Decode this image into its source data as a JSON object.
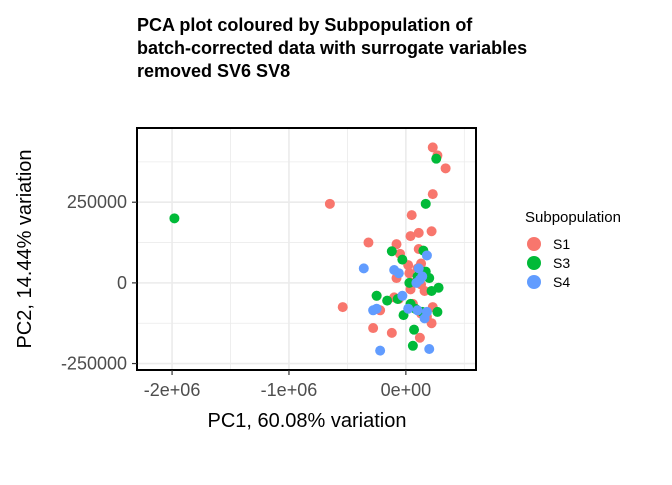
{
  "chart_data": {
    "type": "scatter",
    "title_lines": [
      "PCA plot coloured by Subpopulation of",
      "batch-corrected data with surrogate variables",
      "removed SV6 SV8"
    ],
    "xlabel": "PC1, 60.08% variation",
    "ylabel": "PC2, 14.44% variation",
    "xlim": [
      -2300000,
      600000
    ],
    "ylim": [
      -270000,
      480000
    ],
    "x_ticks": [
      {
        "value": -2000000,
        "label": "-2e+06"
      },
      {
        "value": -1000000,
        "label": "-1e+06"
      },
      {
        "value": 0,
        "label": "0e+00"
      }
    ],
    "y_ticks": [
      {
        "value": 250000,
        "label": "250000"
      },
      {
        "value": 0,
        "label": "0"
      },
      {
        "value": -250000,
        "label": "-250000"
      }
    ],
    "grid": true,
    "legend": {
      "title": "Subpopulation",
      "position": "right"
    },
    "series": [
      {
        "name": "S1",
        "color": "#F8766D",
        "points": [
          [
            230000,
            420000
          ],
          [
            270000,
            395000
          ],
          [
            340000,
            355000
          ],
          [
            230000,
            275000
          ],
          [
            -650000,
            245000
          ],
          [
            50000,
            210000
          ],
          [
            220000,
            160000
          ],
          [
            110000,
            155000
          ],
          [
            40000,
            145000
          ],
          [
            -320000,
            125000
          ],
          [
            -80000,
            120000
          ],
          [
            110000,
            105000
          ],
          [
            -50000,
            90000
          ],
          [
            130000,
            60000
          ],
          [
            20000,
            55000
          ],
          [
            100000,
            45000
          ],
          [
            30000,
            30000
          ],
          [
            -80000,
            15000
          ],
          [
            50000,
            0
          ],
          [
            130000,
            -5000
          ],
          [
            40000,
            -20000
          ],
          [
            160000,
            -25000
          ],
          [
            -250000,
            -40000
          ],
          [
            -100000,
            -45000
          ],
          [
            -60000,
            -50000
          ],
          [
            60000,
            -65000
          ],
          [
            230000,
            -75000
          ],
          [
            130000,
            -95000
          ],
          [
            180000,
            -105000
          ],
          [
            220000,
            -125000
          ],
          [
            -280000,
            -140000
          ],
          [
            -540000,
            -75000
          ],
          [
            -220000,
            -85000
          ],
          [
            -120000,
            -155000
          ],
          [
            120000,
            -170000
          ]
        ]
      },
      {
        "name": "S3",
        "color": "#00BA38",
        "points": [
          [
            260000,
            385000
          ],
          [
            170000,
            245000
          ],
          [
            -1980000,
            200000
          ],
          [
            -120000,
            98000
          ],
          [
            -30000,
            72000
          ],
          [
            150000,
            100000
          ],
          [
            170000,
            35000
          ],
          [
            100000,
            20000
          ],
          [
            200000,
            15000
          ],
          [
            30000,
            0
          ],
          [
            280000,
            -15000
          ],
          [
            220000,
            -25000
          ],
          [
            -250000,
            -40000
          ],
          [
            -160000,
            -55000
          ],
          [
            -70000,
            -50000
          ],
          [
            40000,
            -65000
          ],
          [
            80000,
            -80000
          ],
          [
            140000,
            -90000
          ],
          [
            270000,
            -90000
          ],
          [
            -20000,
            -100000
          ],
          [
            70000,
            -145000
          ],
          [
            60000,
            -195000
          ]
        ]
      },
      {
        "name": "S4",
        "color": "#619CFF",
        "points": [
          [
            180000,
            85000
          ],
          [
            -360000,
            45000
          ],
          [
            -100000,
            40000
          ],
          [
            -60000,
            30000
          ],
          [
            110000,
            45000
          ],
          [
            140000,
            20000
          ],
          [
            90000,
            0
          ],
          [
            -30000,
            -40000
          ],
          [
            20000,
            -80000
          ],
          [
            100000,
            -85000
          ],
          [
            180000,
            -90000
          ],
          [
            -280000,
            -85000
          ],
          [
            -250000,
            -80000
          ],
          [
            -220000,
            -210000
          ],
          [
            200000,
            -205000
          ],
          [
            160000,
            -110000
          ],
          [
            120000,
            10000
          ]
        ]
      }
    ]
  }
}
